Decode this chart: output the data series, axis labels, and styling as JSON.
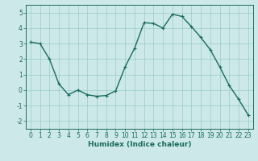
{
  "x": [
    0,
    1,
    2,
    3,
    4,
    5,
    6,
    7,
    8,
    9,
    10,
    11,
    12,
    13,
    14,
    15,
    16,
    17,
    18,
    19,
    20,
    21,
    22,
    23
  ],
  "y": [
    3.1,
    3.0,
    2.0,
    0.4,
    -0.3,
    0.0,
    -0.3,
    -0.4,
    -0.35,
    -0.05,
    1.5,
    2.7,
    4.35,
    4.3,
    4.0,
    4.9,
    4.75,
    4.1,
    3.4,
    2.6,
    1.5,
    0.3,
    -0.6,
    -1.6
  ],
  "line_color": "#1a6b5e",
  "marker": "+",
  "marker_size": 3,
  "bg_color": "#cce8e8",
  "grid_color": "#99cccc",
  "ylim": [
    -2.5,
    5.5
  ],
  "xlim": [
    -0.5,
    23.5
  ],
  "xlabel": "Humidex (Indice chaleur)",
  "yticks": [
    -2,
    -1,
    0,
    1,
    2,
    3,
    4,
    5
  ],
  "xticks": [
    0,
    1,
    2,
    3,
    4,
    5,
    6,
    7,
    8,
    9,
    10,
    11,
    12,
    13,
    14,
    15,
    16,
    17,
    18,
    19,
    20,
    21,
    22,
    23
  ],
  "tick_label_size": 5.5,
  "xlabel_size": 6.5,
  "line_width": 1.0
}
